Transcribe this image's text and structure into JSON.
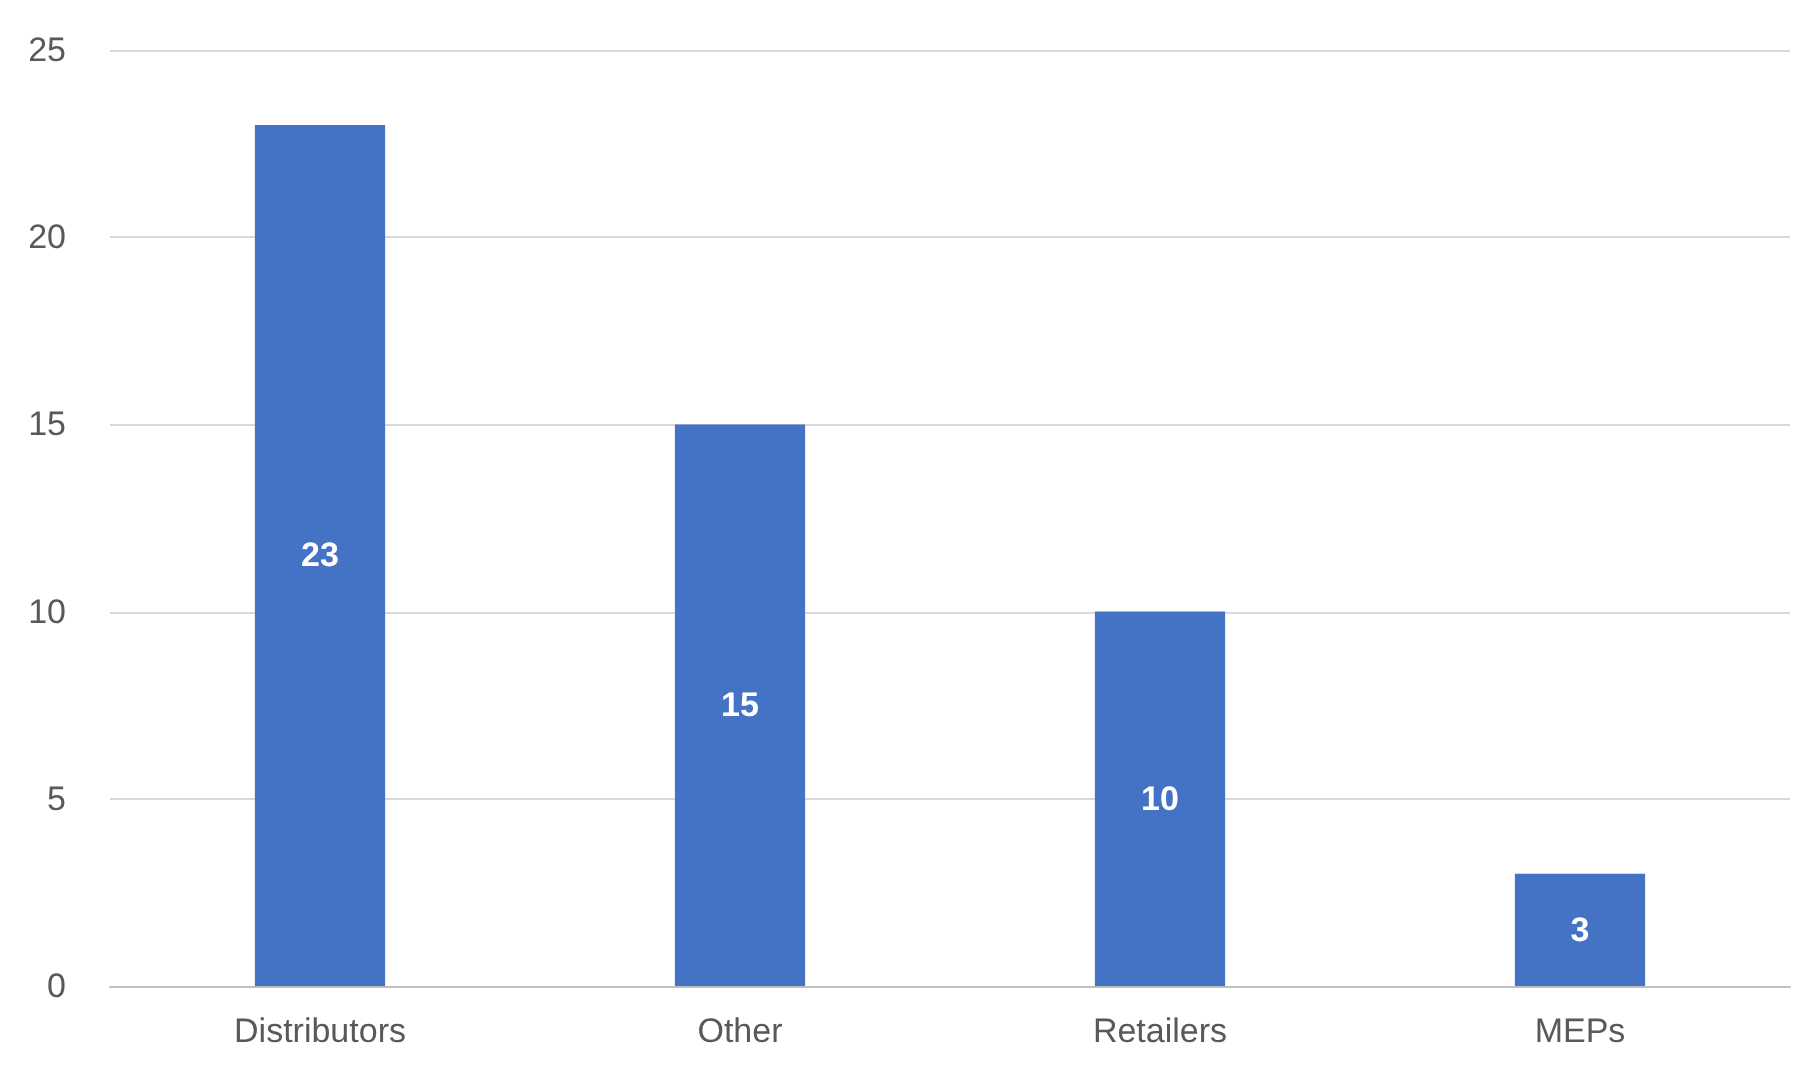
{
  "chart_data": {
    "type": "bar",
    "categories": [
      "Distributors",
      "Other",
      "Retailers",
      "MEPs"
    ],
    "values": [
      23,
      15,
      10,
      3
    ],
    "color": "#4472c4",
    "ylim": [
      0,
      25
    ],
    "yticks": [
      0,
      5,
      10,
      15,
      20,
      25
    ],
    "grid": "y",
    "data_labels": true
  }
}
